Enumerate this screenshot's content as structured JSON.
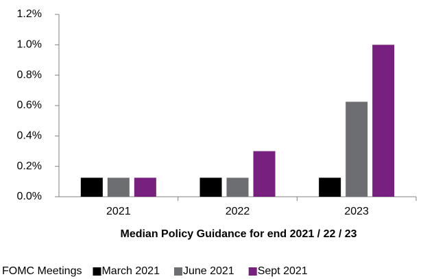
{
  "chart_data": {
    "type": "bar",
    "xlabel": "Median Policy Guidance for end 2021 / 22 / 23",
    "legend_title": "FOMC Meetings",
    "legend": "bottom",
    "categories": [
      "2021",
      "2022",
      "2023"
    ],
    "series": [
      {
        "name": "March 2021",
        "color": "#000000",
        "values": [
          0.125,
          0.125,
          0.125
        ]
      },
      {
        "name": "June 2021",
        "color": "#6d6e71",
        "values": [
          0.125,
          0.125,
          0.625
        ]
      },
      {
        "name": "Sept 2021",
        "color": "#77207f",
        "values": [
          0.125,
          0.3,
          1.0
        ]
      }
    ],
    "ylim": [
      0,
      1.2
    ],
    "yticks": [
      {
        "value": 0,
        "label": "0.0%"
      },
      {
        "value": 0.2,
        "label": "0.2%"
      },
      {
        "value": 0.4,
        "label": "0.4%"
      },
      {
        "value": 0.6,
        "label": "0.6%"
      },
      {
        "value": 0.8,
        "label": "0.8%"
      },
      {
        "value": 1.0,
        "label": "1.0%"
      },
      {
        "value": 1.2,
        "label": "1.2%"
      }
    ]
  }
}
